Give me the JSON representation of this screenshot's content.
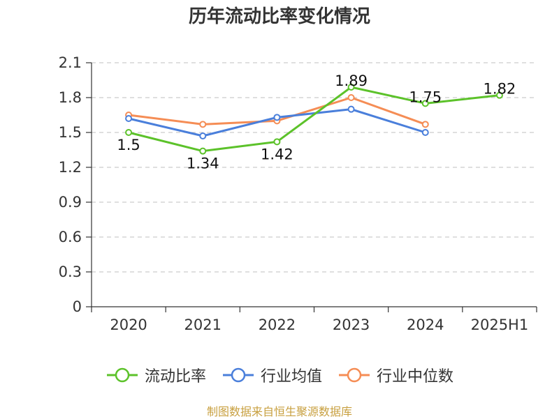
{
  "chart_data": {
    "type": "line",
    "title": "历年流动比率变化情况",
    "categories": [
      "2020",
      "2021",
      "2022",
      "2023",
      "2024",
      "2025H1"
    ],
    "yticks": [
      "0",
      "0.3",
      "0.6",
      "0.9",
      "1.2",
      "1.5",
      "1.8",
      "2.1"
    ],
    "ylim": [
      0,
      2.1
    ],
    "grid": true,
    "legend_position": "bottom",
    "series": [
      {
        "name": "流动比率",
        "color": "#5cc22a",
        "values": [
          1.5,
          1.34,
          1.42,
          1.89,
          1.75,
          1.82
        ],
        "labels": [
          "1.5",
          "1.34",
          "1.42",
          "1.89",
          "1.75",
          "1.82"
        ]
      },
      {
        "name": "行业均值",
        "color": "#4a7fdb",
        "values": [
          1.62,
          1.47,
          1.63,
          1.7,
          1.5,
          null
        ]
      },
      {
        "name": "行业中位数",
        "color": "#f58d55",
        "values": [
          1.65,
          1.57,
          1.6,
          1.8,
          1.57,
          null
        ]
      }
    ]
  },
  "source": "制图数据来自恒生聚源数据库"
}
